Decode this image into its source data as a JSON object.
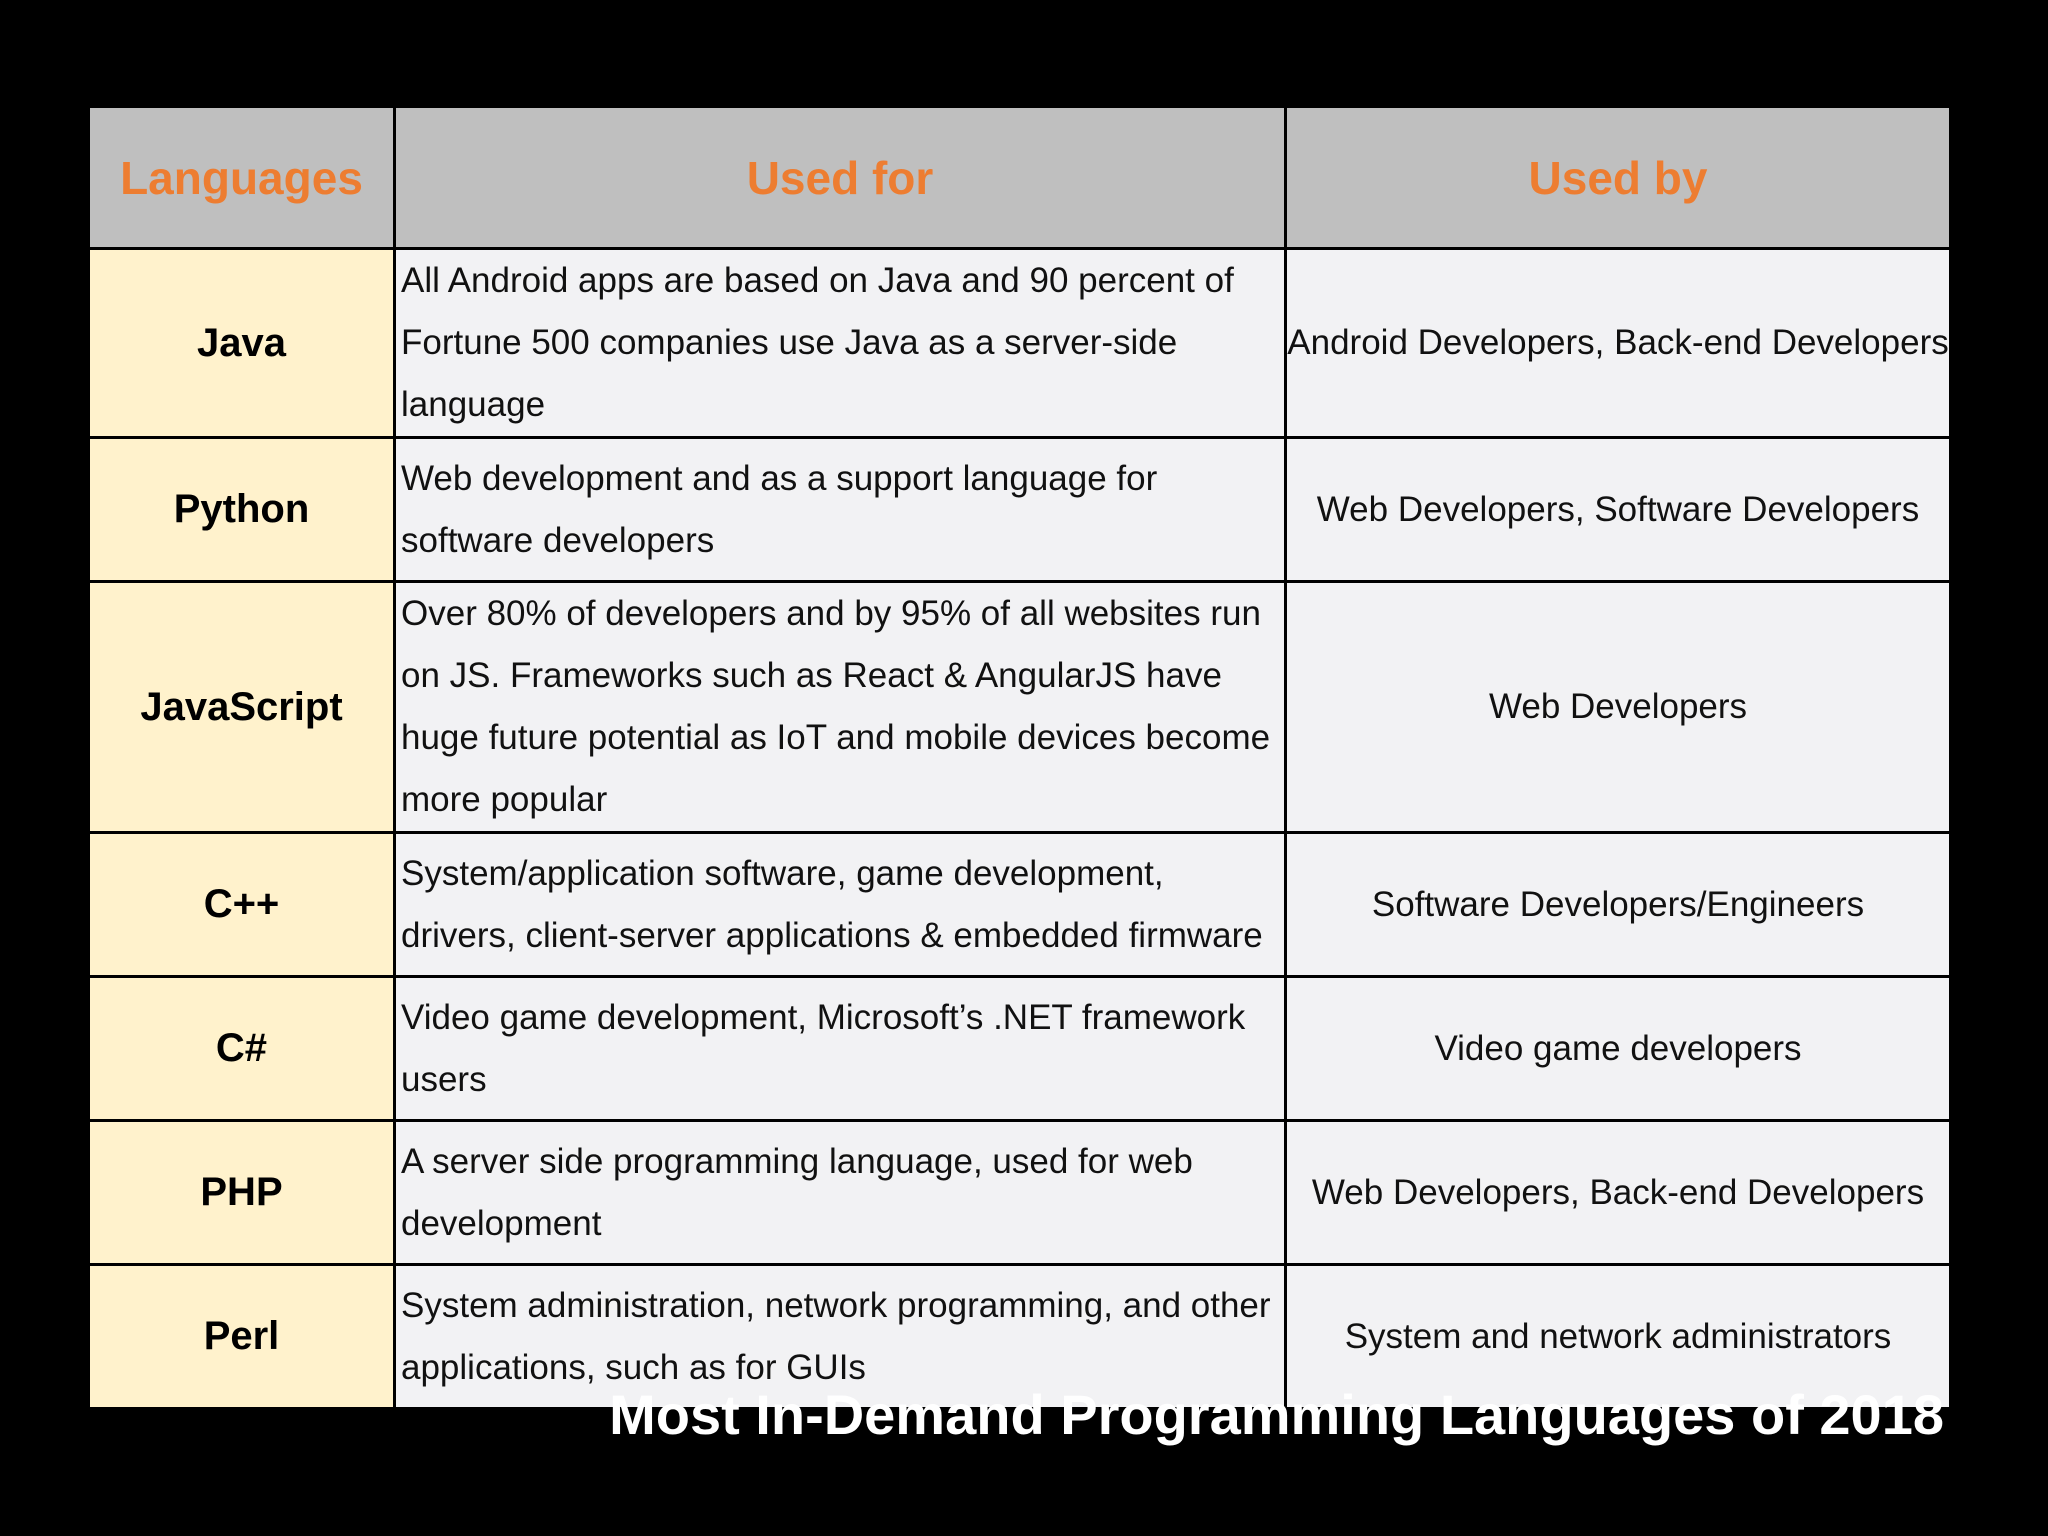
{
  "table": {
    "headers": {
      "languages": "Languages",
      "used_for": "Used for",
      "used_by": "Used by"
    },
    "rows": [
      {
        "language": "Java",
        "used_for": "All Android apps are based on Java and 90 percent of Fortune 500 companies use Java as a server-side language",
        "used_by": "Android Developers, Back-end Developers"
      },
      {
        "language": "Python",
        "used_for": "Web development and as a support language for software developers",
        "used_by": "Web Developers, Software Developers"
      },
      {
        "language": "JavaScript",
        "used_for": "Over 80% of developers and by 95% of all websites run on JS. Frameworks such as React & AngularJS have huge future potential as IoT and mobile devices become more popular",
        "used_by": "Web Developers"
      },
      {
        "language": "C++",
        "used_for": "System/application software, game development, drivers, client-server applications & embedded firmware",
        "used_by": "Software Developers/Engineers"
      },
      {
        "language": "C#",
        "used_for": "Video game development, Microsoft’s .NET framework users",
        "used_by": "Video game developers"
      },
      {
        "language": "PHP",
        "used_for": "A server side programming language, used for web development",
        "used_by": "Web Developers, Back-end Developers"
      },
      {
        "language": "Perl",
        "used_for": "System administration, network programming, and other applications, such as for GUIs",
        "used_by": "System and network administrators"
      }
    ]
  },
  "caption": "Most In-Demand Programming Languages of 2018",
  "colors": {
    "background": "#000000",
    "header_bg": "#bfbfbf",
    "header_text": "#ed7d31",
    "language_cell_bg": "#fff2cc",
    "body_cell_bg": "#f2f2f4",
    "caption_text": "#ffffff"
  }
}
